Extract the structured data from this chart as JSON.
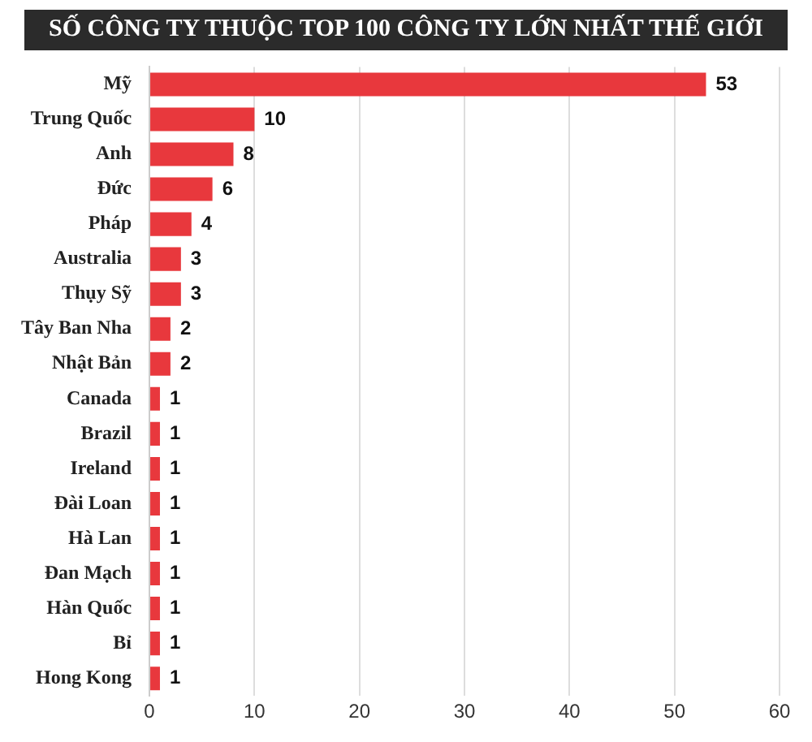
{
  "chart_data": {
    "type": "bar",
    "orientation": "horizontal",
    "title": "SỐ CÔNG TY THUỘC TOP 100 CÔNG TY LỚN NHẤT THẾ GIỚI",
    "categories": [
      "Mỹ",
      "Trung Quốc",
      "Anh",
      "Đức",
      "Pháp",
      "Australia",
      "Thụy Sỹ",
      "Tây Ban Nha",
      "Nhật Bản",
      "Canada",
      "Brazil",
      "Ireland",
      "Đài Loan",
      "Hà Lan",
      "Đan Mạch",
      "Hàn Quốc",
      "Bỉ",
      "Hong Kong"
    ],
    "values": [
      53,
      10,
      8,
      6,
      4,
      3,
      3,
      2,
      2,
      1,
      1,
      1,
      1,
      1,
      1,
      1,
      1,
      1
    ],
    "color": "#e8383d",
    "xlim": [
      0,
      60
    ],
    "xticks": [
      0,
      10,
      20,
      30,
      40,
      50,
      60
    ],
    "grid": "x",
    "data_labels": true
  }
}
